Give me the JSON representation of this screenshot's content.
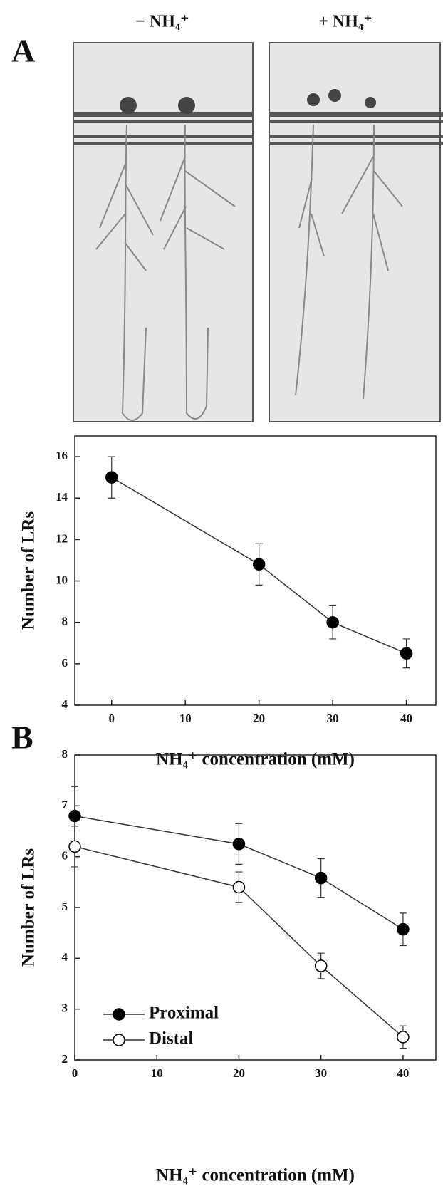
{
  "panels": {
    "A": "A",
    "B": "B"
  },
  "photo": {
    "labels": [
      "− NH₄⁺",
      "+ NH₄⁺"
    ]
  },
  "chart_data": [
    {
      "type": "line",
      "xlabel": "NH₄⁺ concentration (mM)",
      "ylabel": "Number of LRs",
      "x": [
        0,
        20,
        30,
        40
      ],
      "series": [
        {
          "color": "#000000",
          "values": [
            15,
            10.8,
            8,
            6.5
          ],
          "errors": [
            1,
            1,
            0.8,
            0.7
          ]
        }
      ],
      "xlim": [
        -5,
        44
      ],
      "xticks": [
        0,
        10,
        20,
        30,
        40
      ],
      "ylim": [
        4,
        17
      ],
      "yticks": [
        4,
        6,
        8,
        10,
        12,
        14,
        16
      ]
    },
    {
      "type": "line",
      "xlabel": "NH₄⁺ concentration (mM)",
      "ylabel": "Number of LRs",
      "x": [
        0,
        20,
        30,
        40
      ],
      "series": [
        {
          "name": "Proximal",
          "color": "#000000",
          "values": [
            6.8,
            6.25,
            5.58,
            4.57
          ],
          "errors": [
            0.58,
            0.4,
            0.38,
            0.32
          ]
        },
        {
          "name": "Distal",
          "color": "#ffffff",
          "values": [
            6.2,
            5.4,
            3.85,
            2.45
          ],
          "errors": [
            0.4,
            0.3,
            0.25,
            0.22
          ]
        }
      ],
      "xlim": [
        0,
        44
      ],
      "xticks": [
        0,
        10,
        20,
        30,
        40
      ],
      "ylim": [
        2,
        8
      ],
      "yticks": [
        2,
        3,
        4,
        5,
        6,
        7,
        8
      ],
      "legend": "lower left"
    }
  ]
}
